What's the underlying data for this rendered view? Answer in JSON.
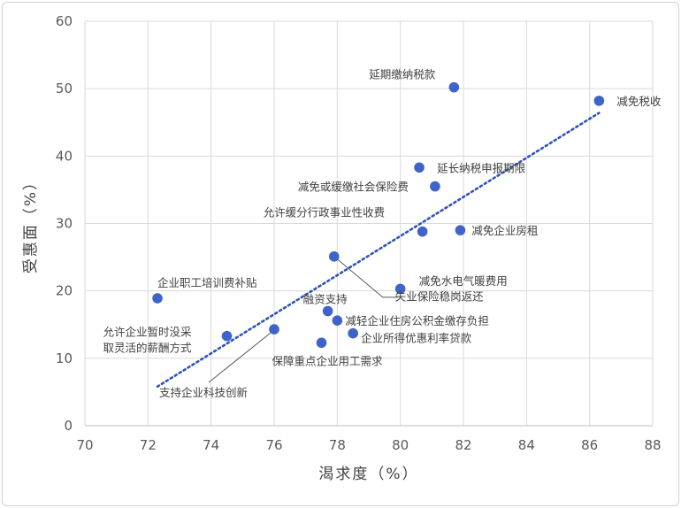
{
  "chart_data": {
    "type": "scatter",
    "title": "",
    "xlabel": "渴求度（%）",
    "ylabel": "受惠面（%）",
    "xlim": [
      70,
      88
    ],
    "ylim": [
      0,
      60
    ],
    "xticks": [
      70,
      72,
      74,
      76,
      78,
      80,
      82,
      84,
      86,
      88
    ],
    "yticks": [
      0,
      10,
      20,
      30,
      40,
      50,
      60
    ],
    "grid": true,
    "point_color": "#3f63c8",
    "trendline": {
      "style": "dotted",
      "color": "#2e54b5",
      "from": [
        72.3,
        5.8
      ],
      "to": [
        86.3,
        46.4
      ]
    },
    "points": [
      {
        "x": 86.3,
        "y": 48.2,
        "label": "减免税收"
      },
      {
        "x": 81.7,
        "y": 50.2,
        "label": "延期缴纳税款"
      },
      {
        "x": 80.6,
        "y": 38.3,
        "label": "延长纳税申报期限"
      },
      {
        "x": 81.1,
        "y": 35.5,
        "label": "减免或缓缴社会保险费"
      },
      {
        "x": 80.7,
        "y": 28.8,
        "label": "允许缓分行政事业性收费"
      },
      {
        "x": 81.9,
        "y": 29.0,
        "label": "减免企业房租"
      },
      {
        "x": 77.9,
        "y": 25.1,
        "label": "减免水电气暖费用"
      },
      {
        "x": 80.0,
        "y": 20.3,
        "label": "失业保险稳岗返还"
      },
      {
        "x": 72.3,
        "y": 18.9,
        "label": "企业职工培训费补贴"
      },
      {
        "x": 77.7,
        "y": 17.0,
        "label": "融资支持"
      },
      {
        "x": 78.0,
        "y": 15.6,
        "label": "减轻企业住房公积金缴存负担"
      },
      {
        "x": 74.5,
        "y": 13.3,
        "label": "允许企业暂时没采取灵活的薪酬方式"
      },
      {
        "x": 78.5,
        "y": 13.7,
        "label": "企业所得优惠利率贷款"
      },
      {
        "x": 77.5,
        "y": 12.3,
        "label": "保障重点企业用工需求"
      },
      {
        "x": 76.0,
        "y": 14.3,
        "label": "支持企业科技创新"
      }
    ]
  }
}
